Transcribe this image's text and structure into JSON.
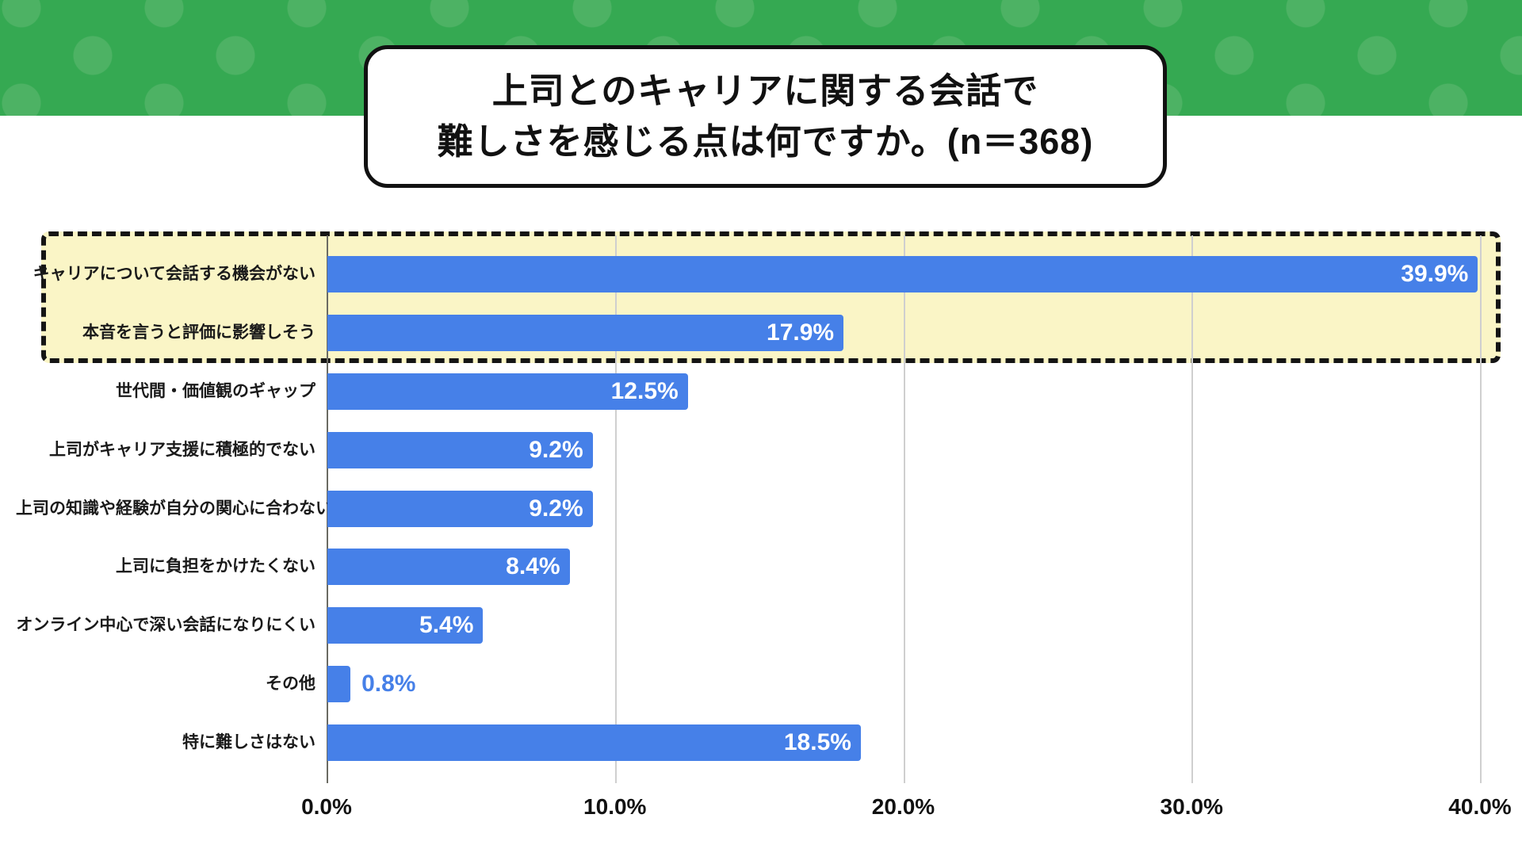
{
  "title": {
    "line1": "上司とのキャリアに関する会話で",
    "line2": "難しさを感じる点は何ですか。(n＝368)"
  },
  "colors": {
    "band_green": "#35A952",
    "band_dot_green": "#4DB264",
    "bar_blue": "#4680E8",
    "highlight_yellow": "#FAF5C6"
  },
  "chart_data": {
    "type": "bar",
    "orientation": "horizontal",
    "title": "上司とのキャリアに関する会話で難しさを感じる点は何ですか。(n＝368)",
    "n": 368,
    "categories": [
      "キャリアについて会話する機会がない",
      "本音を言うと評価に影響しそう",
      "世代間・価値観のギャップ",
      "上司がキャリア支援に積極的でない",
      "上司の知識や経験が自分の関心に合わない",
      "上司に負担をかけたくない",
      "オンライン中心で深い会話になりにくい",
      "その他",
      "特に難しさはない"
    ],
    "values": [
      39.9,
      17.9,
      12.5,
      9.2,
      9.2,
      8.4,
      5.4,
      0.8,
      18.5
    ],
    "value_labels": [
      "39.9%",
      "17.9%",
      "12.5%",
      "9.2%",
      "9.2%",
      "8.4%",
      "5.4%",
      "0.8%",
      "18.5%"
    ],
    "xlim": [
      0,
      40
    ],
    "ticks": [
      0,
      10,
      20,
      30,
      40
    ],
    "tick_labels": [
      "0.0%",
      "10.0%",
      "20.0%",
      "30.0%",
      "40.0%"
    ],
    "grid": true,
    "legend": false,
    "highlighted_rows": [
      0,
      1
    ]
  }
}
